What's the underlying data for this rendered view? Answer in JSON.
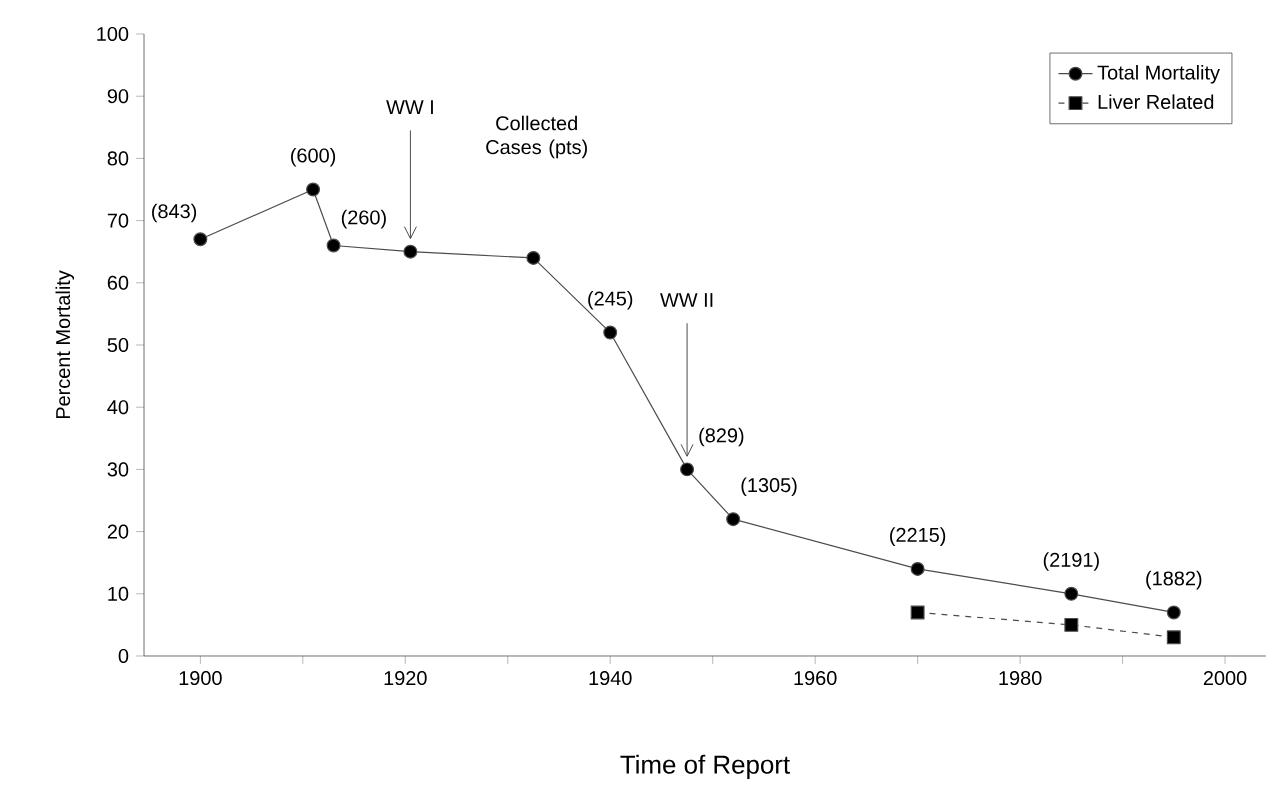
{
  "chart_data": {
    "type": "line",
    "xlabel": "Time of Report",
    "ylabel": "Percent Mortality",
    "xlim": [
      1894.5,
      2004
    ],
    "ylim": [
      0,
      100
    ],
    "xticks": [
      1900,
      {
        "value": 1910,
        "label": null
      },
      1920,
      {
        "value": 1930,
        "label": null
      },
      1940,
      {
        "value": 1950,
        "label": null
      },
      1960,
      {
        "value": 1970,
        "label": null
      },
      1980,
      {
        "value": 1990,
        "label": null
      },
      2000
    ],
    "yticks": [
      0,
      10,
      20,
      30,
      40,
      50,
      60,
      70,
      80,
      90,
      100
    ],
    "grid": false,
    "legend": "top right",
    "series": [
      {
        "name": "Total Mortality",
        "color": "#000000",
        "marker": "circle",
        "line_style": "solid",
        "x": [
          1900,
          1911,
          1913,
          1920.5,
          1932.5,
          1940,
          1947.5,
          1952,
          1970,
          1985,
          1995
        ],
        "values": [
          67,
          75,
          66,
          65,
          64,
          52,
          30,
          22,
          14,
          10,
          7
        ]
      },
      {
        "name": "Liver Related",
        "color": "#000000",
        "marker": "square",
        "line_style": "dashed",
        "x": [
          1970,
          1985,
          1995
        ],
        "values": [
          7,
          5,
          3
        ]
      }
    ],
    "annotations": [
      {
        "text": "(843)",
        "x": 1900,
        "y": 67
      },
      {
        "text": "(600)",
        "x": 1911,
        "y": 75
      },
      {
        "text": "(260)",
        "x": 1913,
        "y": 66
      },
      {
        "text": "(245)",
        "x": 1940,
        "y": 52
      },
      {
        "text": "(829)",
        "x": 1947.5,
        "y": 30
      },
      {
        "text": "(1305)",
        "x": 1952,
        "y": 22
      },
      {
        "text": "(2215)",
        "x": 1970,
        "y": 14
      },
      {
        "text": "(2191)",
        "x": 1985,
        "y": 10
      },
      {
        "text": "(1882)",
        "x": 1995,
        "y": 7
      },
      {
        "text": "WW I",
        "x": 1920.5,
        "y": 65
      },
      {
        "text": "WW II",
        "x": 1947.5,
        "y": 30
      },
      "Collected Cases (pts)"
    ]
  }
}
